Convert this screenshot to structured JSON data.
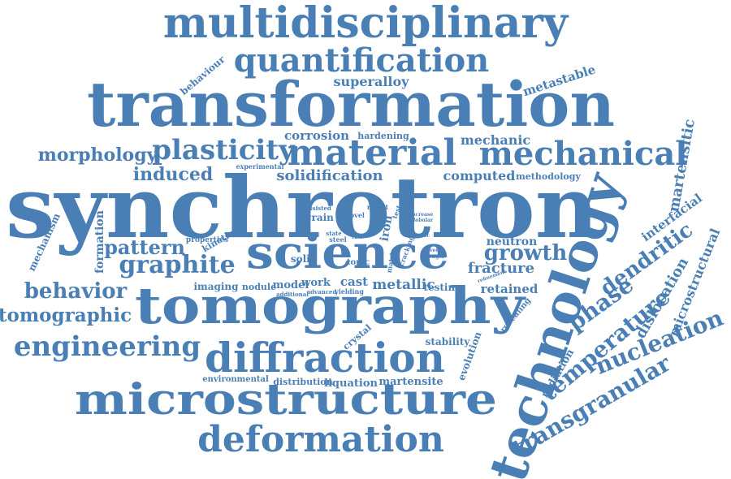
{
  "cloud": {
    "color": "#4a7fb5",
    "words": {
      "multidisciplinary": "multidisciplinary",
      "quantification": "quantification",
      "superalloy": "superalloy",
      "metastable": "metastable",
      "behaviour": "behaviour",
      "transformation": "transformation",
      "corrosion": "corrosion",
      "hardening": "hardening",
      "mechanic": "mechanic",
      "morphology": "morphology",
      "plasticity": "plasticity",
      "material": "material",
      "mechanical": "mechanical",
      "martensitic": "martensitic",
      "induced": "induced",
      "experimental": "experimental",
      "solidification": "solidification",
      "computed": "computed",
      "methodology": "methodology",
      "synchrotron": "synchrotron",
      "technology": "technology",
      "mechanism": "mechanism",
      "formation": "formation",
      "grain": "grain",
      "assisted": "assisted",
      "novel": "novel",
      "result": "result",
      "iron": "iron",
      "test": "test",
      "increase": "increase",
      "globular": "globular",
      "kinetic": "kinetic",
      "properties": "properties",
      "state": "state",
      "steel": "steel",
      "rate": "rate",
      "cracking": "cracking",
      "plastic": "plastic",
      "drived": "drived",
      "strength": "strength",
      "neutron": "neutron",
      "interfacial": "interfacial",
      "pattern": "pattern",
      "science": "science",
      "growth": "growth",
      "graphite": "graphite",
      "solid": "solid",
      "topic": "topic",
      "matrix": "matrix",
      "fracture": "fracture",
      "refinement": "refinement",
      "dendritic": "dendritic",
      "imaging": "imaging",
      "nodule": "nodule",
      "model": "model",
      "work": "work",
      "cast": "cast",
      "metallic": "metallic",
      "retained": "retained",
      "behavior": "behavior",
      "additional": "additional",
      "advanced": "advanced",
      "yielding": "yielding",
      "testing": "testing",
      "phase": "phase",
      "dislocation": "dislocation",
      "microstructural": "microstructural",
      "tomographic": "tomographic",
      "tomography": "tomography",
      "revealing": "revealing",
      "temperature": "temperature",
      "crystal": "crystal",
      "engineering": "engineering",
      "stability": "stability",
      "evolution": "evolution",
      "nucleation": "nucleation",
      "diffraction": "diffraction",
      "radiation": "radiation",
      "environmental": "environmental",
      "distribution": "distribution",
      "liquation": "liquation",
      "martensite": "martensite",
      "microstructure": "microstructure",
      "transgranular": "transgranular",
      "deformation": "deformation"
    }
  }
}
